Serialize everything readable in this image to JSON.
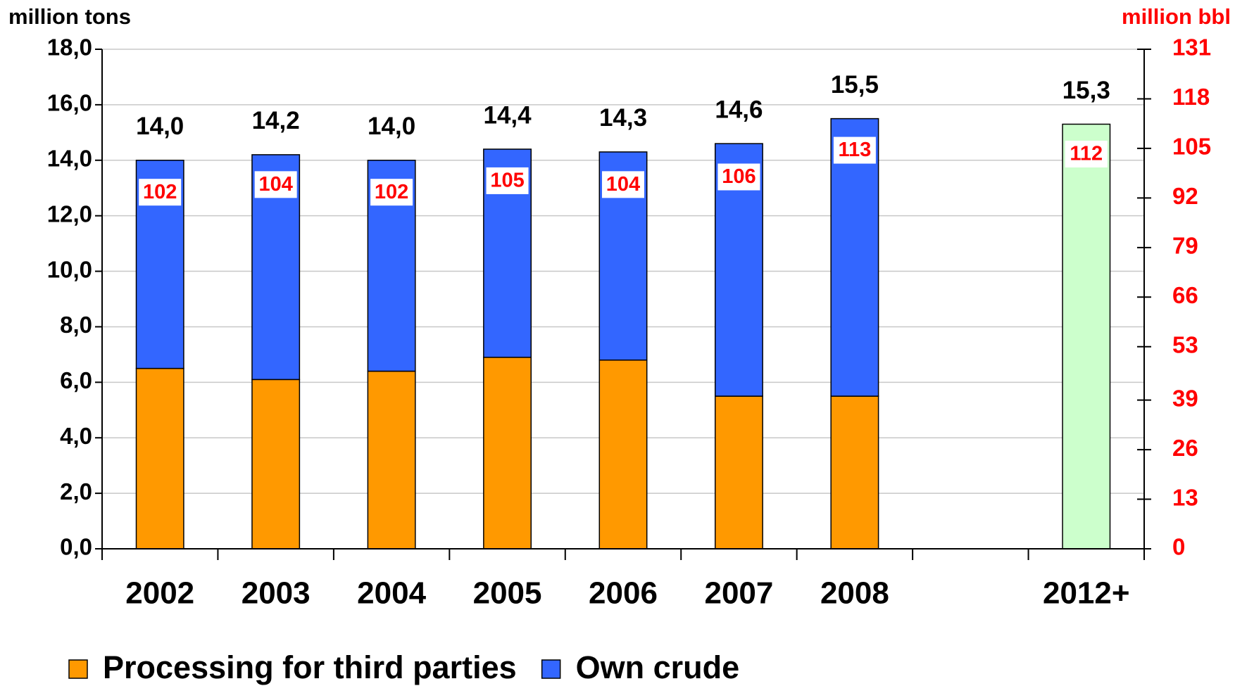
{
  "chart_data": {
    "type": "bar",
    "y_axis_label": "million tons",
    "y2_axis_label": "million bbl",
    "categories": [
      "2002",
      "2003",
      "2004",
      "2005",
      "2006",
      "2007",
      "2008",
      null,
      "2012+"
    ],
    "series": [
      {
        "name": "Processing for third parties",
        "color": "#FF9900",
        "values": [
          6.5,
          6.1,
          6.4,
          6.9,
          6.8,
          5.5,
          5.5,
          null,
          null
        ]
      },
      {
        "name": "Own crude",
        "color": "#3366FF",
        "values": [
          7.5,
          8.1,
          7.6,
          7.5,
          7.5,
          9.1,
          10.0,
          null,
          null
        ]
      },
      {
        "color": "#CCFFCC",
        "values": [
          null,
          null,
          null,
          null,
          null,
          null,
          null,
          null,
          15.3
        ]
      }
    ],
    "totals": [
      14.0,
      14.2,
      14.0,
      14.4,
      14.3,
      14.6,
      15.5,
      null,
      15.3
    ],
    "total_labels": [
      "14,0",
      "14,2",
      "14,0",
      "14,4",
      "14,3",
      "14,6",
      "15,5",
      null,
      "15,3"
    ],
    "bbl_values": [
      102,
      104,
      102,
      105,
      104,
      106,
      113,
      null,
      112
    ],
    "bbl_color": "#FF0000",
    "ylim": [
      0,
      18
    ],
    "yticks": [
      {
        "value": 0,
        "label": "0,0"
      },
      {
        "value": 2,
        "label": "2,0"
      },
      {
        "value": 4,
        "label": "4,0"
      },
      {
        "value": 6,
        "label": "6,0"
      },
      {
        "value": 8,
        "label": "8,0"
      },
      {
        "value": 10,
        "label": "10,0"
      },
      {
        "value": 12,
        "label": "12,0"
      },
      {
        "value": 14,
        "label": "14,0"
      },
      {
        "value": 16,
        "label": "16,0"
      },
      {
        "value": 18,
        "label": "18,0"
      }
    ],
    "y2lim": [
      0,
      131
    ],
    "y2ticks": [
      0,
      13,
      26,
      39,
      53,
      66,
      79,
      92,
      105,
      118,
      131
    ],
    "grid": true
  }
}
